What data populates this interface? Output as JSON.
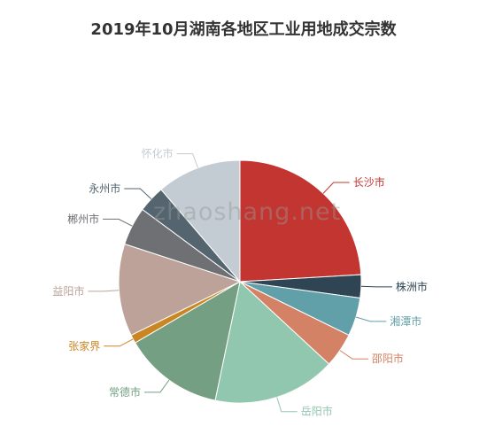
{
  "chart_data": {
    "type": "pie",
    "title": "2019年10月湖南各地区工业用地成交宗数",
    "categories": [
      "长沙市",
      "株洲市",
      "湘潭市",
      "邵阳市",
      "岳阳市",
      "常德市",
      "张家界",
      "益阳市",
      "郴州市",
      "永州市",
      "怀化市"
    ],
    "values": [
      23.5,
      3,
      5,
      4.5,
      16,
      13,
      1.1,
      12,
      5,
      3.5,
      11
    ],
    "colors": [
      "#c23531",
      "#2f4554",
      "#61a0a8",
      "#d48265",
      "#91c7ae",
      "#749f83",
      "#ca8622",
      "#bda29a",
      "#6e7074",
      "#546570",
      "#c4ccd3"
    ],
    "legend": "none"
  },
  "watermark": "zhaoshang.net"
}
